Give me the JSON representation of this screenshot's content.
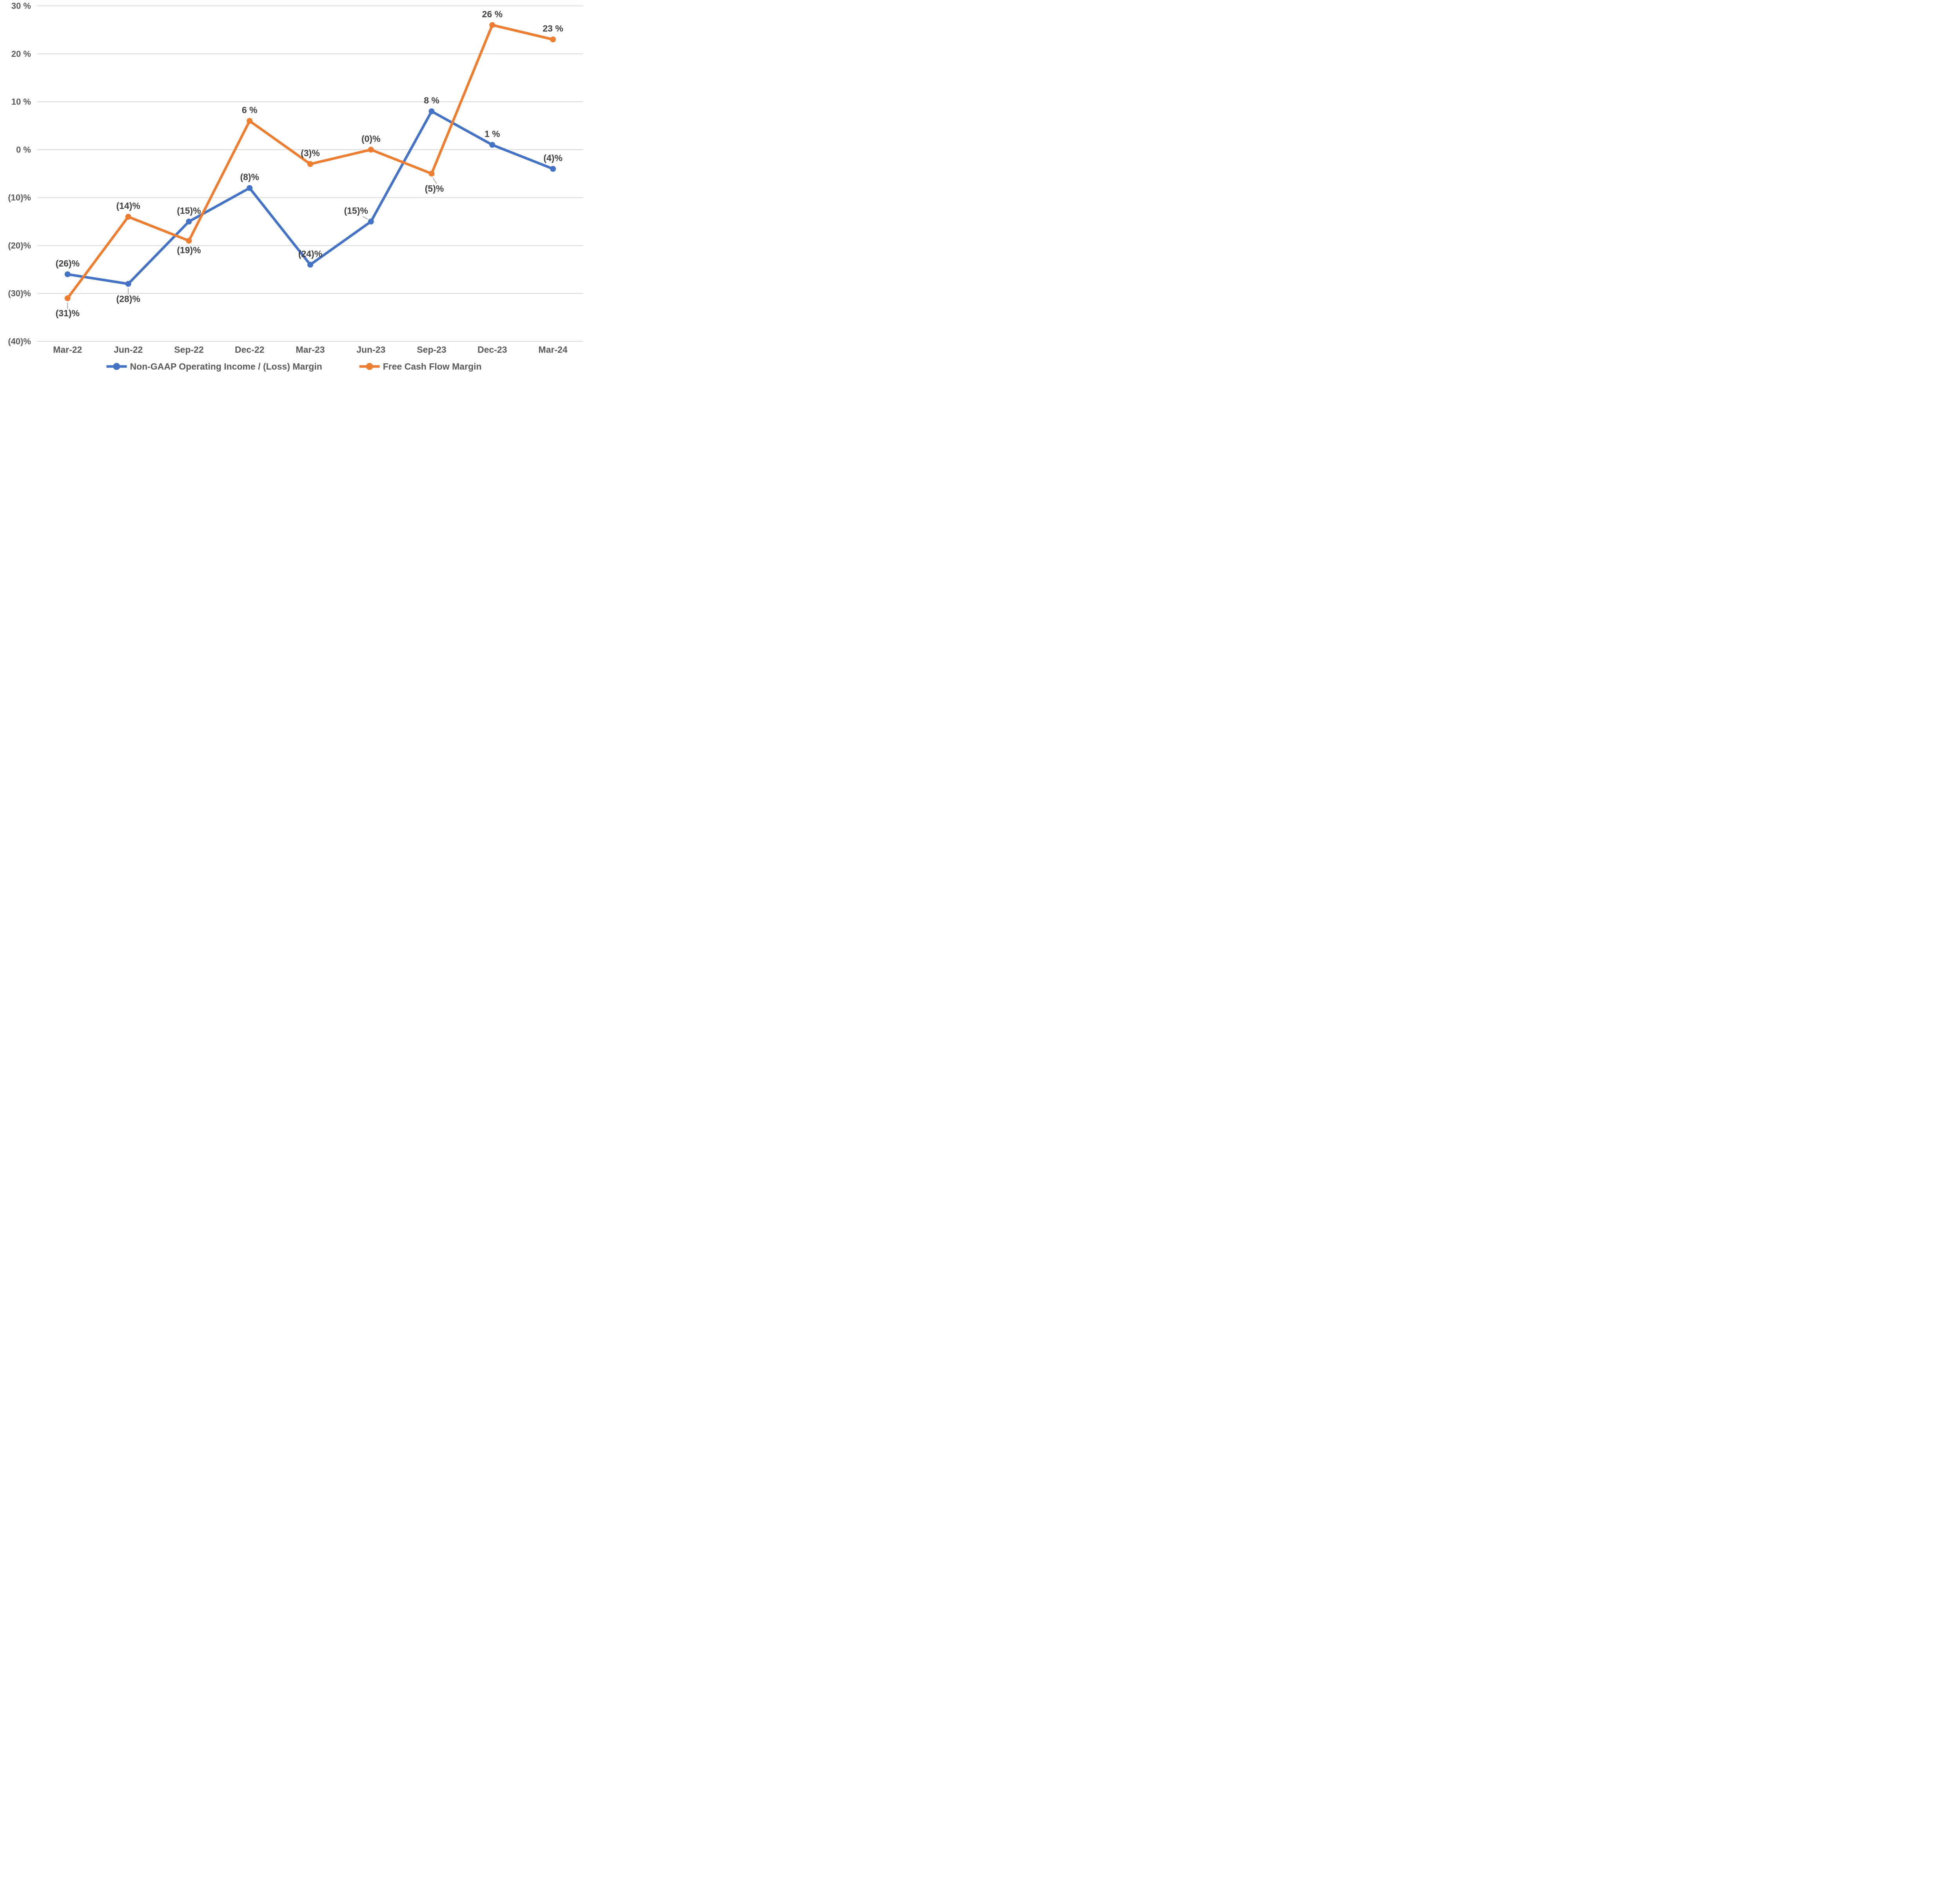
{
  "chart_data": {
    "type": "line",
    "title": "",
    "categories": [
      "Mar-22",
      "Jun-22",
      "Sep-22",
      "Dec-22",
      "Mar-23",
      "Jun-23",
      "Sep-23",
      "Dec-23",
      "Mar-24"
    ],
    "y_axis": {
      "ticks": [
        "30 %",
        "20 %",
        "10 %",
        "0 %",
        "(10)%",
        "(20)%",
        "(30)%",
        "(40)%"
      ],
      "tick_values": [
        30,
        20,
        10,
        0,
        -10,
        -20,
        -30,
        -40
      ],
      "max": 30,
      "min": -40,
      "grid": true
    },
    "legend_position": "bottom",
    "series": [
      {
        "name": "Non-GAAP Operating Income / (Loss) Margin",
        "color": "#4472C4",
        "values": [
          -26,
          -28,
          -15,
          -8,
          -24,
          -15,
          8,
          1,
          -4
        ],
        "labels": [
          "(26)%",
          "(28)%",
          "(15)%",
          "(8)%",
          "(24)%",
          "(15)%",
          "8 %",
          "1 %",
          "(4)%"
        ],
        "label_placement": [
          "above",
          "below-leader",
          "above",
          "above",
          "above",
          "left-leader",
          "above",
          "above",
          "above"
        ]
      },
      {
        "name": "Free Cash Flow Margin",
        "color": "#ED7D31",
        "values": [
          -31,
          -14,
          -19,
          6,
          -3,
          0,
          -5,
          26,
          23
        ],
        "labels": [
          "(31)%",
          "(14)%",
          "(19)%",
          "6 %",
          "(3)%",
          "(0)%",
          "(5)%",
          "26 %",
          "23 %"
        ],
        "label_placement": [
          "below-leader",
          "above",
          "below",
          "above",
          "above",
          "above",
          "below-leader-diag",
          "above",
          "above"
        ]
      }
    ],
    "colors": {
      "background": "#FFFFFF",
      "gridline": "#D9D9D9",
      "tick_text": "#595959",
      "label_text": "#3F3F3F",
      "leader": "#A6A6A6",
      "series_blue": "#4472C4",
      "series_orange": "#ED7D31"
    }
  }
}
